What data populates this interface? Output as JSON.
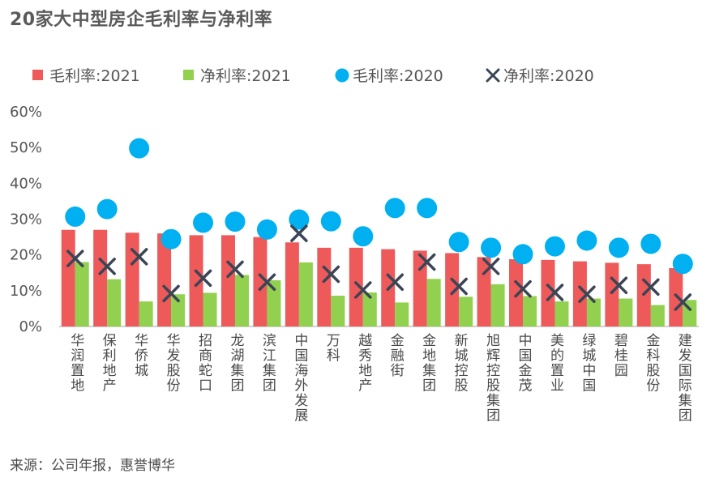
{
  "title": "20家大中型房企毛利率与净利率",
  "source": "来源：公司年报，惠誉博华",
  "colors": {
    "gross_2021": "#EE5A5A",
    "net_2021": "#92D050",
    "gross_2020": "#00B0F0",
    "net_2020": "#3A4556",
    "axis": "#bfbfbf"
  },
  "chart_data": {
    "type": "bar",
    "title": "20家大中型房企毛利率与净利率",
    "categories": [
      "华润置地",
      "保利地产",
      "华侨城",
      "华发股份",
      "招商蛇口",
      "龙湖集团",
      "滨江集团",
      "中国海外发展",
      "万科",
      "越秀地产",
      "金融街",
      "金地集团",
      "新城控股",
      "旭辉控股集团",
      "中国金茂",
      "美的置业",
      "绿城中国",
      "碧桂园",
      "金科股份",
      "建发国际集团"
    ],
    "series": [
      {
        "name": "毛利率:2021",
        "type": "bar",
        "values": [
          27.0,
          27.0,
          26.2,
          26.0,
          25.5,
          25.5,
          25.0,
          23.5,
          22.0,
          22.0,
          21.6,
          21.2,
          20.5,
          19.4,
          18.8,
          18.6,
          18.2,
          17.8,
          17.4,
          16.3
        ]
      },
      {
        "name": "净利率:2021",
        "type": "bar",
        "values": [
          18.0,
          13.2,
          7.0,
          9.0,
          9.4,
          14.4,
          12.9,
          17.9,
          8.6,
          9.5,
          6.7,
          13.3,
          8.3,
          11.8,
          8.5,
          7.0,
          7.8,
          7.8,
          6.0,
          7.4
        ]
      },
      {
        "name": "毛利率:2020",
        "type": "marker-circle",
        "values": [
          30.7,
          32.8,
          49.8,
          24.4,
          29.0,
          29.3,
          27.1,
          29.9,
          29.4,
          25.2,
          33.1,
          33.1,
          23.6,
          22.0,
          20.2,
          22.4,
          24.0,
          22.0,
          23.1,
          17.5
        ]
      },
      {
        "name": "净利率:2020",
        "type": "marker-x",
        "values": [
          19.0,
          16.8,
          19.5,
          9.2,
          13.5,
          16.0,
          12.4,
          26.0,
          14.6,
          10.2,
          12.4,
          18.0,
          11.2,
          16.8,
          10.5,
          9.5,
          9.0,
          11.5,
          11.0,
          6.8
        ]
      }
    ],
    "ylim": [
      0,
      60
    ],
    "yticks": [
      "0%",
      "10%",
      "20%",
      "30%",
      "40%",
      "50%",
      "60%"
    ],
    "xlabel": "",
    "ylabel": "",
    "grid": false,
    "legend": "top"
  }
}
